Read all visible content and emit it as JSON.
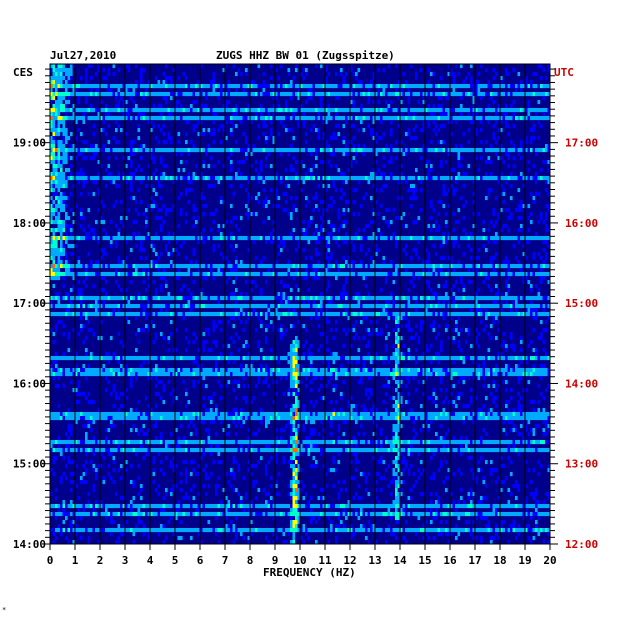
{
  "chart_data": {
    "type": "heatmap",
    "title": "ZUGS HHZ BW 01 (Zugsspitze)",
    "date": "Jul27,2010",
    "left_timezone": "CES",
    "right_timezone": "UTC",
    "xlabel": "FREQUENCY (HZ)",
    "xlim": [
      0,
      20
    ],
    "x_ticks": [
      "0",
      "1",
      "2",
      "3",
      "4",
      "5",
      "6",
      "7",
      "8",
      "9",
      "10",
      "11",
      "12",
      "13",
      "14",
      "15",
      "16",
      "17",
      "18",
      "19",
      "20"
    ],
    "left_time_ticks": [
      {
        "hour": 19,
        "label": "19:00"
      },
      {
        "hour": 18,
        "label": "18:00"
      },
      {
        "hour": 17,
        "label": "17:00"
      },
      {
        "hour": 16,
        "label": "16:00"
      },
      {
        "hour": 15,
        "label": "15:00"
      },
      {
        "hour": 14,
        "label": "14:00"
      }
    ],
    "right_time_ticks": [
      {
        "hour": 17,
        "label": "17:00"
      },
      {
        "hour": 16,
        "label": "16:00"
      },
      {
        "hour": 15,
        "label": "15:00"
      },
      {
        "hour": 14,
        "label": "14:00"
      },
      {
        "hour": 13,
        "label": "13:00"
      },
      {
        "hour": 12,
        "label": "12:00"
      }
    ],
    "y_range_hours_ces": [
      14.0,
      19.98
    ],
    "colormap": [
      "#00008b",
      "#0000ff",
      "#00aaff",
      "#00ffcc",
      "#ffff00",
      "#ff6600",
      "#ff0000"
    ],
    "features": [
      {
        "name": "low-frequency noise",
        "freq_range_hz": [
          0,
          1
        ],
        "time_range_ces": [
          17.3,
          19.98
        ],
        "intensity": "high"
      },
      {
        "name": "9.8 Hz line",
        "freq_hz": 9.8,
        "time_range_ces": [
          14.0,
          16.5
        ],
        "intensity": "very high"
      },
      {
        "name": "13.9 Hz line",
        "freq_hz": 13.9,
        "time_range_ces": [
          14.3,
          16.8
        ],
        "intensity": "high"
      },
      {
        "name": "11.3 Hz burst",
        "freq_hz": 11.3,
        "time_range_ces": [
          15.6,
          15.6
        ],
        "intensity": "very high"
      }
    ],
    "grid": true
  },
  "footer_mark": "*"
}
